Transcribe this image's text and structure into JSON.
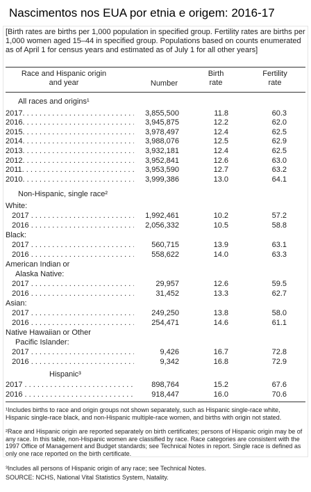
{
  "title": "Nascimentos nos EUA por etnia e origem: 2016-17",
  "intro": "[Birth rates are births per 1,000 population in specified group. Fertility rates are births per 1,000 women aged 15–44 in specified group. Populations based on counts enumerated as of April 1 for census years and estimated as of July 1 for all other years]",
  "columns": {
    "race": "Race and Hispanic origin and year",
    "number": "Number",
    "birth_rate": "Birth rate",
    "fertility_rate": "Fertility rate"
  },
  "sections": {
    "all": "All races and origins¹",
    "nonhisp": "Non-Hispanic, single race²",
    "hispanic": "Hispanic³"
  },
  "groups": {
    "white": "White:",
    "black": "Black:",
    "aian_1": "American Indian or",
    "aian_2": "Alaska Native:",
    "asian": "Asian:",
    "nhopi_1": "Native Hawaiian or Other",
    "nhopi_2": "Pacific Islander:"
  },
  "rows": {
    "all_2017": {
      "year": "2017",
      "number": "3,855,500",
      "birth": "11.8",
      "fert": "60.3"
    },
    "all_2016": {
      "year": "2016",
      "number": "3,945,875",
      "birth": "12.2",
      "fert": "62.0"
    },
    "all_2015": {
      "year": "2015",
      "number": "3,978,497",
      "birth": "12.4",
      "fert": "62.5"
    },
    "all_2014": {
      "year": "2014",
      "number": "3,988,076",
      "birth": "12.5",
      "fert": "62.9"
    },
    "all_2013": {
      "year": "2013",
      "number": "3,932,181",
      "birth": "12.4",
      "fert": "62.5"
    },
    "all_2012": {
      "year": "2012",
      "number": "3,952,841",
      "birth": "12.6",
      "fert": "63.0"
    },
    "all_2011": {
      "year": "2011",
      "number": "3,953,590",
      "birth": "12.7",
      "fert": "63.2"
    },
    "all_2010": {
      "year": "2010",
      "number": "3,999,386",
      "birth": "13.0",
      "fert": "64.1"
    },
    "white_2017": {
      "year": "2017",
      "number": "1,992,461",
      "birth": "10.2",
      "fert": "57.2"
    },
    "white_2016": {
      "year": "2016",
      "number": "2,056,332",
      "birth": "10.5",
      "fert": "58.8"
    },
    "black_2017": {
      "year": "2017",
      "number": "560,715",
      "birth": "13.9",
      "fert": "63.1"
    },
    "black_2016": {
      "year": "2016",
      "number": "558,622",
      "birth": "14.0",
      "fert": "63.3"
    },
    "aian_2017": {
      "year": "2017",
      "number": "29,957",
      "birth": "12.6",
      "fert": "59.5"
    },
    "aian_2016": {
      "year": "2016",
      "number": "31,452",
      "birth": "13.3",
      "fert": "62.7"
    },
    "asian_2017": {
      "year": "2017",
      "number": "249,250",
      "birth": "13.8",
      "fert": "58.0"
    },
    "asian_2016": {
      "year": "2016",
      "number": "254,471",
      "birth": "14.6",
      "fert": "61.1"
    },
    "nhopi_2017": {
      "year": "2017",
      "number": "9,426",
      "birth": "16.7",
      "fert": "72.8"
    },
    "nhopi_2016": {
      "year": "2016",
      "number": "9,342",
      "birth": "16.8",
      "fert": "72.9"
    },
    "hisp_2017": {
      "year": "2017",
      "number": "898,764",
      "birth": "15.2",
      "fert": "67.6"
    },
    "hisp_2016": {
      "year": "2016",
      "number": "918,447",
      "birth": "16.0",
      "fert": "70.6"
    }
  },
  "footnotes": {
    "f1": "¹Includes births to race and origin groups not shown separately, such as Hispanic single-race white, Hispanic single-race black, and non-Hispanic multiple-race women, and births with origin not stated.",
    "f2": "²Race and Hispanic origin are reported separately on birth certificates; persons of Hispanic origin may be of any race. In this table, non-Hispanic women are classified by race. Race categories are consistent with the 1997 Office of Management and Budget standards; see Technical Notes in report. Single race is defined as only one race reported on the birth certificate.",
    "f3": "³Includes all persons of Hispanic origin of any race; see Technical Notes.",
    "source": "SOURCE: NCHS, National Vital Statistics System, Natality."
  }
}
